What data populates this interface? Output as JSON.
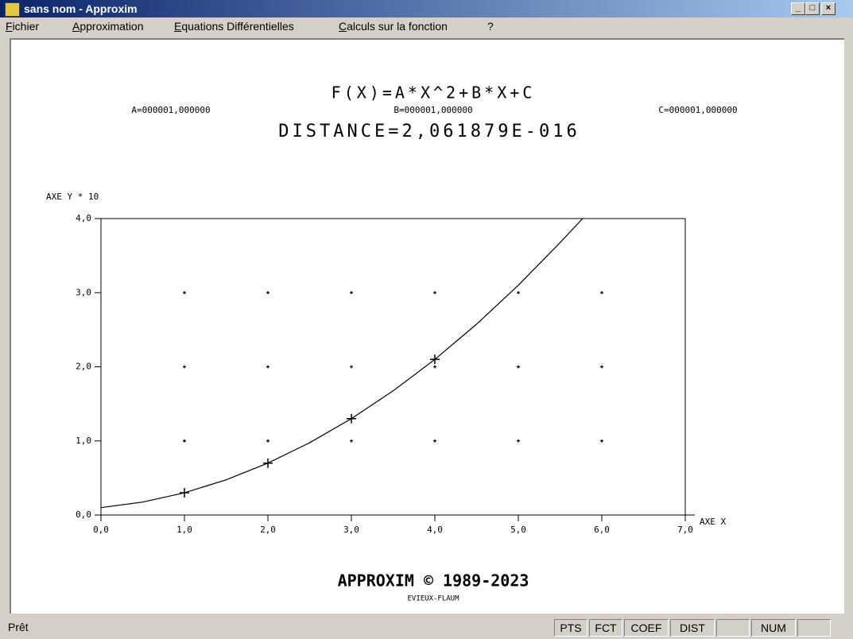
{
  "window": {
    "title": "sans nom - Approxim"
  },
  "menu": [
    "Fichier",
    "Approximation",
    "Equations Différentielles",
    "Calculs sur la fonction",
    "?"
  ],
  "chart_data": {
    "type": "scatter",
    "title": "F(X)=A*X^2+B*X+C",
    "coefficients": [
      "A=000001,000000",
      "B=000001,000000",
      "C=000001,000000"
    ],
    "subtitle": "DISTANCE=2,061879E-016",
    "y_label": "AXE Y * 10",
    "x_label": "AXE X",
    "x": [
      1,
      2,
      3,
      4
    ],
    "values": [
      0.3,
      0.7,
      1.3,
      2.1
    ],
    "curve": {
      "x": [
        0,
        0.5,
        1,
        1.5,
        2,
        2.5,
        3,
        3.5,
        4,
        4.5,
        5,
        5.5,
        5.77
      ],
      "values": [
        0.1,
        0.175,
        0.3,
        0.475,
        0.7,
        0.975,
        1.3,
        1.675,
        2.1,
        2.575,
        3.1,
        3.675,
        4.0
      ]
    },
    "color": "#000000",
    "xlim": [
      0,
      7
    ],
    "ylim": [
      0,
      4
    ],
    "xticks": [
      {
        "value": 0,
        "label": "0,0"
      },
      {
        "value": 1,
        "label": "1,0"
      },
      {
        "value": 2,
        "label": "2,0"
      },
      {
        "value": 3,
        "label": "3,0"
      },
      {
        "value": 4,
        "label": "4,0"
      },
      {
        "value": 5,
        "label": "5,0"
      },
      {
        "value": 6,
        "label": "6,0"
      },
      {
        "value": 7,
        "label": "7,0"
      }
    ],
    "yticks": [
      {
        "value": 0,
        "label": "0,0"
      },
      {
        "value": 1,
        "label": "1,0"
      },
      {
        "value": 2,
        "label": "2,0"
      },
      {
        "value": 3,
        "label": "3,0"
      },
      {
        "value": 4,
        "label": "4,0"
      }
    ],
    "grid": true
  },
  "footer": {
    "copyright": "APPROXIM © 1989-2023",
    "author": "EVIEUX-FLAUM"
  },
  "status": {
    "text": "Prêt",
    "panels": [
      "PTS",
      "FCT",
      "COEF",
      "DIST",
      "NUM"
    ]
  }
}
